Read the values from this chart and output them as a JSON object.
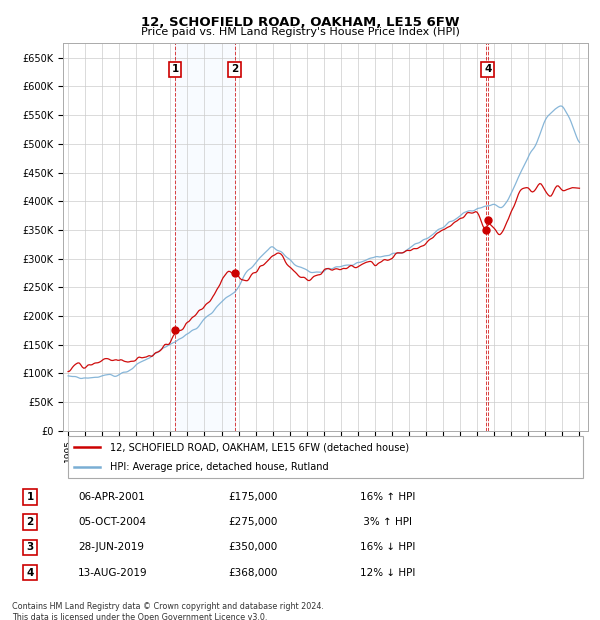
{
  "title": "12, SCHOFIELD ROAD, OAKHAM, LE15 6FW",
  "subtitle": "Price paid vs. HM Land Registry's House Price Index (HPI)",
  "ylabel_ticks": [
    "£0",
    "£50K",
    "£100K",
    "£150K",
    "£200K",
    "£250K",
    "£300K",
    "£350K",
    "£400K",
    "£450K",
    "£500K",
    "£550K",
    "£600K",
    "£650K"
  ],
  "ytick_values": [
    0,
    50000,
    100000,
    150000,
    200000,
    250000,
    300000,
    350000,
    400000,
    450000,
    500000,
    550000,
    600000,
    650000
  ],
  "ylim": [
    0,
    675000
  ],
  "xlim_start": 1994.7,
  "xlim_end": 2025.5,
  "legend_line1": "12, SCHOFIELD ROAD, OAKHAM, LE15 6FW (detached house)",
  "legend_line2": "HPI: Average price, detached house, Rutland",
  "sale_color": "#cc0000",
  "hpi_color": "#7aaed4",
  "grid_color": "#cccccc",
  "shade_color": "#ddeeff",
  "transactions": [
    {
      "num": 1,
      "date": "06-APR-2001",
      "price": 175000,
      "year": 2001.27,
      "show_box": true
    },
    {
      "num": 2,
      "date": "05-OCT-2004",
      "price": 275000,
      "year": 2004.77,
      "show_box": true
    },
    {
      "num": 3,
      "date": "28-JUN-2019",
      "price": 350000,
      "year": 2019.49,
      "show_box": false
    },
    {
      "num": 4,
      "date": "13-AUG-2019",
      "price": 368000,
      "year": 2019.62,
      "show_box": true
    }
  ],
  "table_rows": [
    [
      "1",
      "06-APR-2001",
      "£175,000",
      "16% ↑ HPI"
    ],
    [
      "2",
      "05-OCT-2004",
      "£275,000",
      " 3% ↑ HPI"
    ],
    [
      "3",
      "28-JUN-2019",
      "£350,000",
      "16% ↓ HPI"
    ],
    [
      "4",
      "13-AUG-2019",
      "£368,000",
      "12% ↓ HPI"
    ]
  ],
  "footer1": "Contains HM Land Registry data © Crown copyright and database right 2024.",
  "footer2": "This data is licensed under the Open Government Licence v3.0.",
  "background_color": "#ffffff"
}
